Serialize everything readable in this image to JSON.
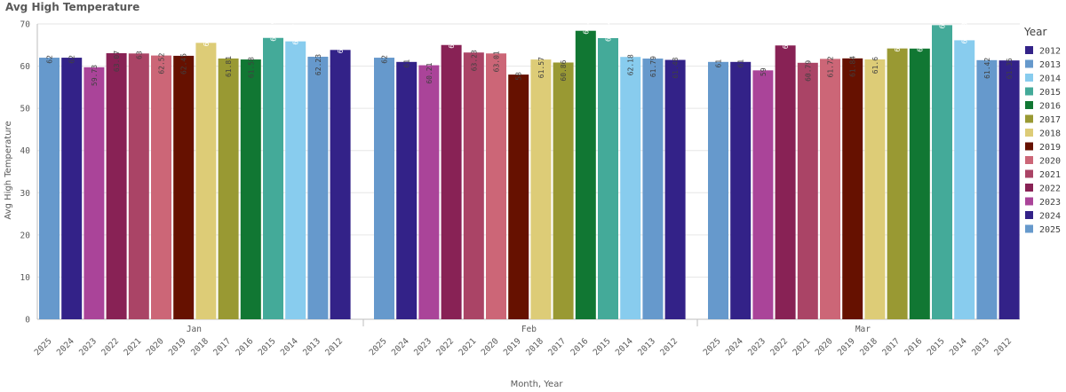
{
  "chart_data": {
    "type": "bar",
    "title": "Avg High Temperature",
    "xlabel": "Month, Year",
    "ylabel": "Avg High Temperature",
    "ylim": [
      0,
      70
    ],
    "yticks": [
      0,
      10,
      20,
      30,
      40,
      50,
      60,
      70
    ],
    "grid": true,
    "legend_position": "right",
    "legend_title": "Year",
    "legend": [
      {
        "label": "2012",
        "color": "#332288"
      },
      {
        "label": "2013",
        "color": "#6699cc"
      },
      {
        "label": "2014",
        "color": "#88ccee"
      },
      {
        "label": "2015",
        "color": "#44aa99"
      },
      {
        "label": "2016",
        "color": "#117733"
      },
      {
        "label": "2017",
        "color": "#999933"
      },
      {
        "label": "2018",
        "color": "#ddcc77"
      },
      {
        "label": "2019",
        "color": "#661100"
      },
      {
        "label": "2020",
        "color": "#cc6677"
      },
      {
        "label": "2021",
        "color": "#aa4466"
      },
      {
        "label": "2022",
        "color": "#882255"
      },
      {
        "label": "2023",
        "color": "#aa4499"
      },
      {
        "label": "2024",
        "color": "#332288"
      },
      {
        "label": "2025",
        "color": "#6699cc"
      }
    ],
    "groups": [
      {
        "month": "Jan",
        "years": [
          "2025",
          "2024",
          "2023",
          "2022",
          "2021",
          "2020",
          "2019",
          "2018",
          "2017",
          "2016",
          "2015",
          "2014",
          "2013",
          "2012"
        ],
        "values": [
          62,
          62,
          59.73,
          63.07,
          63,
          62.52,
          62.45,
          65.52,
          61.81,
          61.58,
          66.69,
          65.87,
          62.23,
          63.84
        ]
      },
      {
        "month": "Feb",
        "years": [
          "2025",
          "2024",
          "2023",
          "2022",
          "2021",
          "2020",
          "2019",
          "2018",
          "2017",
          "2016",
          "2015",
          "2014",
          "2013",
          "2012"
        ],
        "values": [
          62,
          61,
          60.21,
          65.01,
          63.23,
          63.01,
          58,
          61.57,
          60.86,
          68.38,
          66.64,
          62.18,
          61.79,
          61.48
        ]
      },
      {
        "month": "Mar",
        "years": [
          "2025",
          "2024",
          "2023",
          "2022",
          "2021",
          "2020",
          "2019",
          "2018",
          "2017",
          "2016",
          "2015",
          "2014",
          "2013",
          "2012"
        ],
        "values": [
          61,
          61,
          59,
          64.9,
          60.79,
          61.72,
          61.84,
          61.6,
          64.19,
          64.16,
          69.71,
          66.13,
          61.42,
          61.35
        ]
      }
    ]
  }
}
